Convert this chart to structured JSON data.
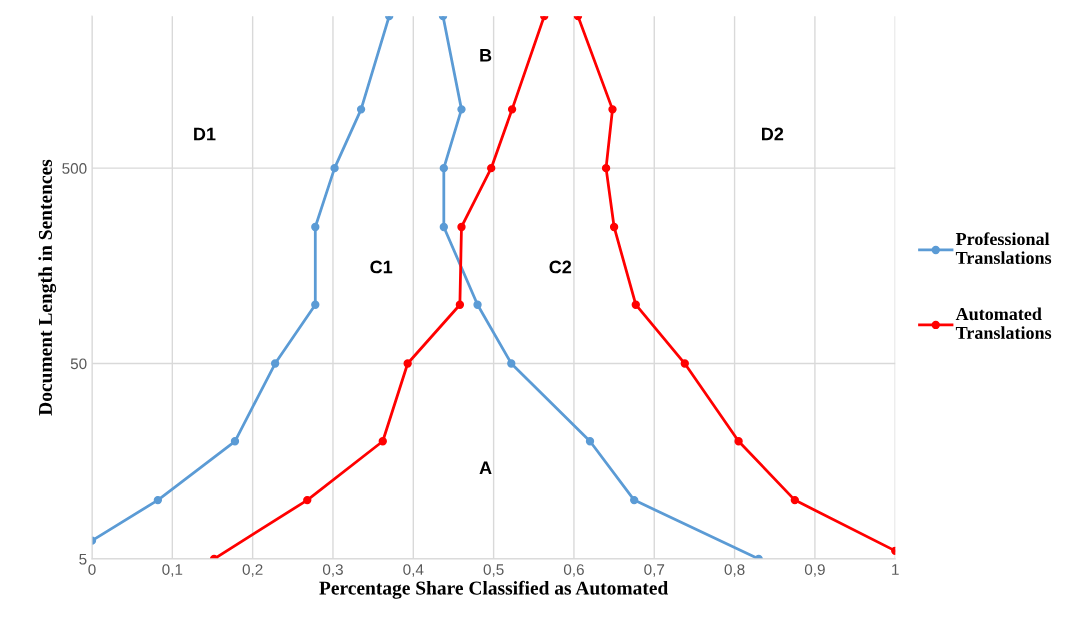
{
  "chart_data": {
    "type": "line",
    "xlabel": "Percentage Share Classified as Automated",
    "ylabel": "Document Length in Sentences",
    "log": "y",
    "xlim": [
      0,
      1
    ],
    "xticks": [
      0,
      {
        "value": 0.1,
        "label": "0,1"
      },
      {
        "value": 0.2,
        "label": "0,2"
      },
      {
        "value": 0.3,
        "label": "0,3"
      },
      {
        "value": 0.4,
        "label": "0,4"
      },
      {
        "value": 0.5,
        "label": "0,5"
      },
      {
        "value": 0.6,
        "label": "0,6"
      },
      {
        "value": 0.7,
        "label": "0,7"
      },
      {
        "value": 0.8,
        "label": "0,8"
      },
      {
        "value": 0.9,
        "label": "0,9"
      },
      1
    ],
    "ylim": [
      5,
      3000
    ],
    "yticks": [
      5,
      50,
      500
    ],
    "grid": true,
    "legend": "right",
    "marker": "circle",
    "line_style": "solid",
    "series": [
      {
        "name": "Professional Translations",
        "color": "#5b9bd5",
        "x": [
          0.83,
          0.675,
          0.62,
          0.522,
          0.48,
          0.438,
          0.438,
          0.46,
          0.437
        ],
        "values": [
          5,
          10,
          20,
          50,
          100,
          250,
          500,
          1000,
          3000
        ]
      },
      {
        "color": "#5b9bd5",
        "x": [
          0,
          0.082,
          0.178,
          0.228,
          0.278,
          0.278,
          0.302,
          0.335,
          0.37
        ],
        "values": [
          6.2,
          10,
          20,
          50,
          100,
          250,
          500,
          1000,
          3000
        ]
      },
      {
        "name": "Automated Translations",
        "color": "#ff0000",
        "x": [
          0.152,
          0.268,
          0.362,
          0.393,
          0.458,
          0.46,
          0.497,
          0.523,
          0.563
        ],
        "values": [
          5,
          10,
          20,
          50,
          100,
          250,
          500,
          1000,
          3000
        ]
      },
      {
        "color": "#ff0000",
        "x": [
          1,
          0.875,
          0.805,
          0.738,
          0.677,
          0.65,
          0.64,
          0.648,
          0.605
        ],
        "values": [
          5.5,
          10,
          20,
          50,
          100,
          250,
          500,
          1000,
          3000
        ]
      }
    ],
    "annotations": [
      "D1",
      "D2",
      "B",
      "C1",
      "C2",
      "A"
    ]
  }
}
